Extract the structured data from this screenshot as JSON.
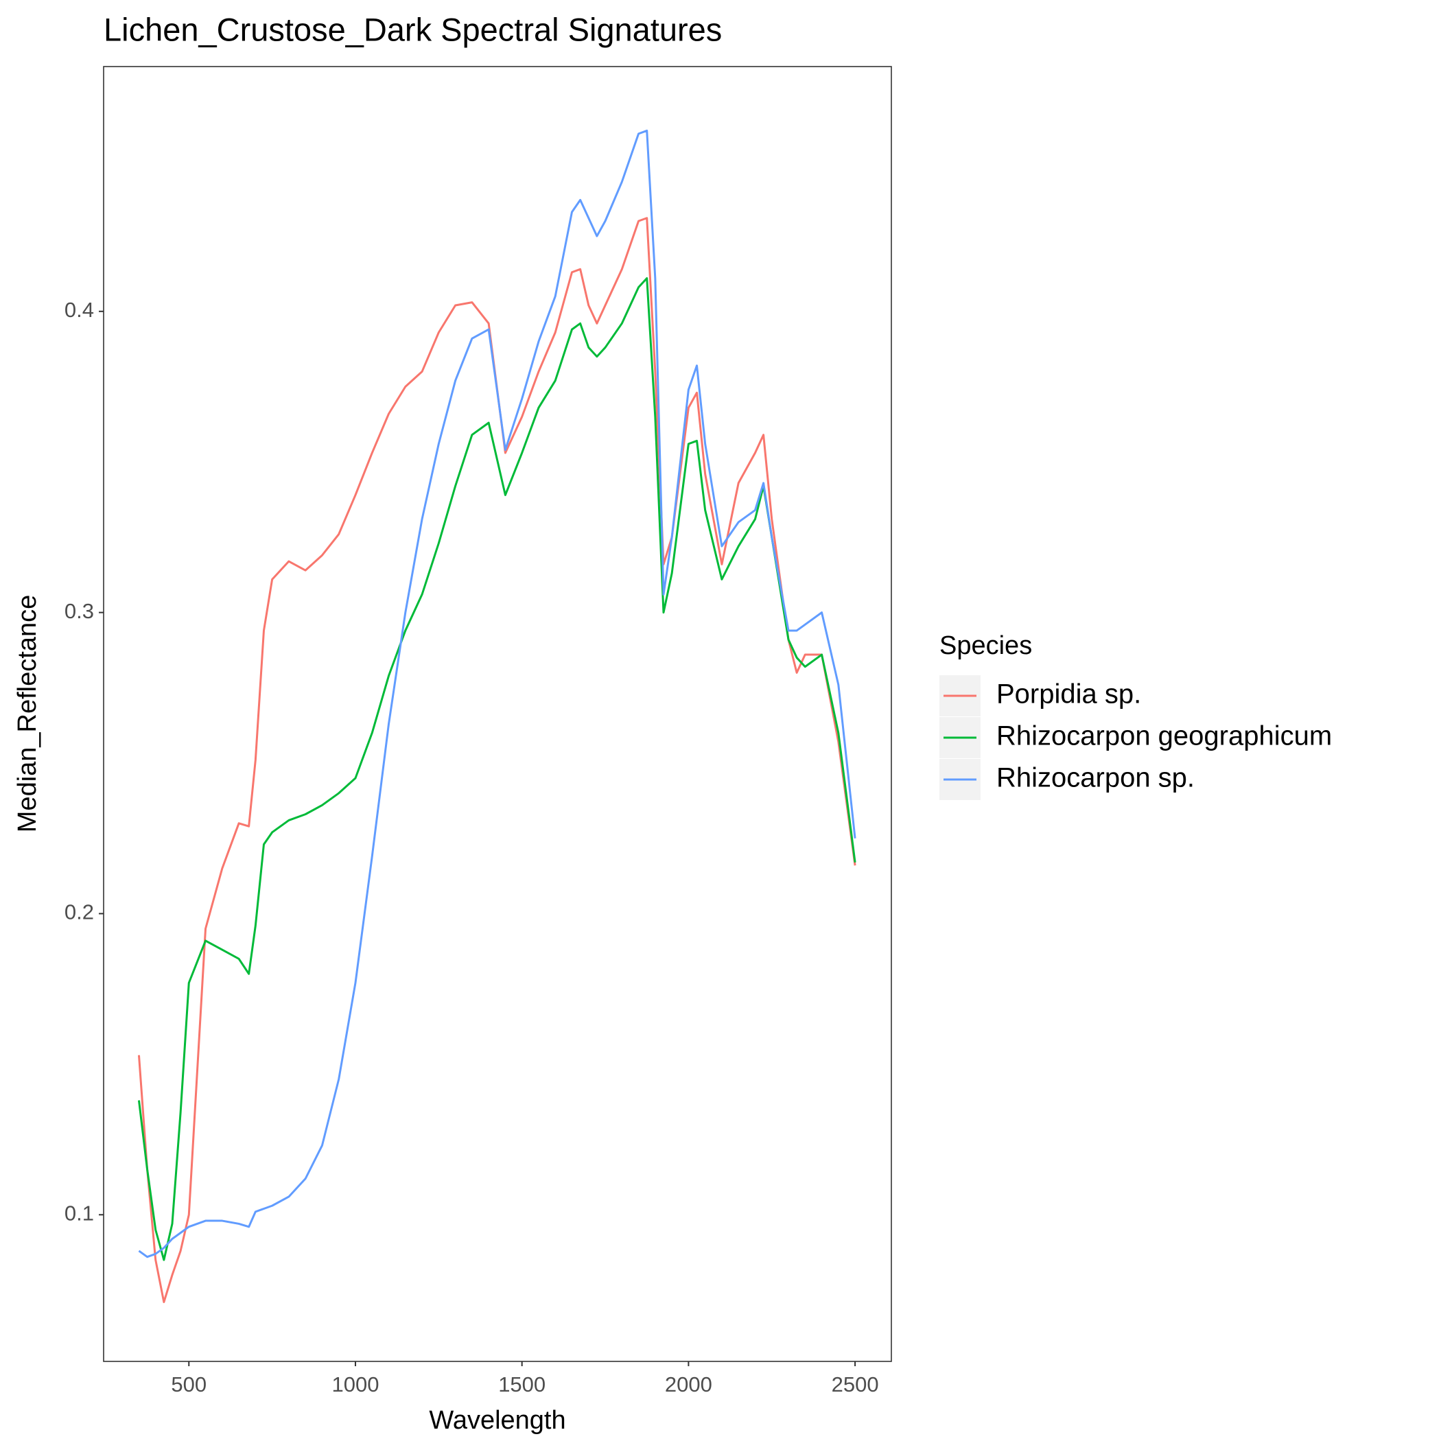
{
  "chart_data": {
    "type": "line",
    "title": "Lichen_Crustose_Dark Spectral Signatures",
    "x_label": "Wavelength",
    "y_label": "Median_Reflectance",
    "legend_title": "Species",
    "legend_position": "right",
    "grid": false,
    "x": [
      350,
      375,
      400,
      425,
      450,
      475,
      500,
      550,
      600,
      650,
      680,
      700,
      725,
      750,
      800,
      850,
      900,
      950,
      1000,
      1050,
      1100,
      1150,
      1200,
      1250,
      1300,
      1350,
      1400,
      1450,
      1500,
      1550,
      1600,
      1650,
      1675,
      1700,
      1725,
      1750,
      1800,
      1850,
      1875,
      1900,
      1925,
      1950,
      2000,
      2025,
      2050,
      2100,
      2150,
      2200,
      2225,
      2250,
      2300,
      2325,
      2350,
      2400,
      2450,
      2500
    ],
    "series": [
      {
        "name": "Porpidia sp.",
        "color": "#F8766D",
        "values": [
          0.153,
          0.115,
          0.085,
          0.071,
          0.08,
          0.088,
          0.1,
          0.195,
          0.215,
          0.23,
          0.229,
          0.251,
          0.294,
          0.311,
          0.317,
          0.314,
          0.319,
          0.326,
          0.339,
          0.353,
          0.366,
          0.375,
          0.38,
          0.393,
          0.402,
          0.403,
          0.396,
          0.353,
          0.365,
          0.38,
          0.393,
          0.413,
          0.414,
          0.402,
          0.396,
          0.402,
          0.414,
          0.43,
          0.431,
          0.38,
          0.316,
          0.325,
          0.368,
          0.373,
          0.346,
          0.316,
          0.343,
          0.353,
          0.359,
          0.331,
          0.291,
          0.28,
          0.286,
          0.286,
          0.257,
          0.216
        ]
      },
      {
        "name": "Rhizocarpon geographicum",
        "color": "#00BA38",
        "values": [
          0.138,
          0.115,
          0.095,
          0.085,
          0.097,
          0.134,
          0.177,
          0.191,
          0.188,
          0.185,
          0.18,
          0.196,
          0.223,
          0.227,
          0.231,
          0.233,
          0.236,
          0.24,
          0.245,
          0.26,
          0.279,
          0.294,
          0.306,
          0.323,
          0.342,
          0.359,
          0.363,
          0.339,
          0.353,
          0.368,
          0.377,
          0.394,
          0.396,
          0.388,
          0.385,
          0.388,
          0.396,
          0.408,
          0.411,
          0.365,
          0.3,
          0.313,
          0.356,
          0.357,
          0.334,
          0.311,
          0.322,
          0.331,
          0.342,
          0.325,
          0.291,
          0.285,
          0.282,
          0.286,
          0.26,
          0.217
        ]
      },
      {
        "name": "Rhizocarpon sp.",
        "color": "#619CFF",
        "values": [
          0.088,
          0.086,
          0.087,
          0.089,
          0.092,
          0.094,
          0.096,
          0.098,
          0.098,
          0.097,
          0.096,
          0.101,
          0.102,
          0.103,
          0.106,
          0.112,
          0.123,
          0.145,
          0.177,
          0.219,
          0.263,
          0.3,
          0.331,
          0.356,
          0.377,
          0.391,
          0.394,
          0.354,
          0.371,
          0.39,
          0.405,
          0.433,
          0.437,
          0.431,
          0.425,
          0.43,
          0.443,
          0.459,
          0.46,
          0.411,
          0.306,
          0.325,
          0.374,
          0.382,
          0.356,
          0.322,
          0.33,
          0.334,
          0.343,
          0.325,
          0.294,
          0.294,
          0.296,
          0.3,
          0.276,
          0.225
        ]
      }
    ],
    "xlim": [
      244,
      2609
    ],
    "ylim": [
      0.0513,
      0.4813
    ],
    "xticks": [
      500,
      1000,
      1500,
      2000,
      2500
    ],
    "yticks": [
      0.1,
      0.2,
      0.3,
      0.4
    ]
  }
}
